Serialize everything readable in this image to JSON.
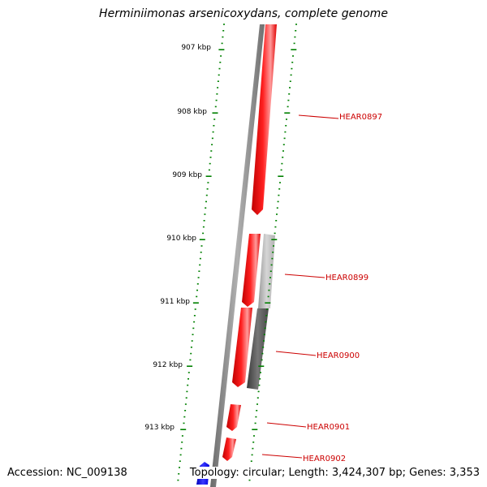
{
  "title": "Herminiimonas arsenicoxydans, complete genome",
  "accession": "Accession: NC_009138",
  "summary": "Topology: circular; Length: 3,424,307 bp; Genes: 3,353",
  "colors": {
    "backbone": "#808080",
    "gene_forward": "#ff0000",
    "gene_reverse_light": "#bbbbbb",
    "gene_reverse_dark": "#555555",
    "gene_blue": "#0000ff",
    "ticks": "#008000",
    "label_text": "#cc0000"
  },
  "scale_labels": [
    "907 kbp",
    "908 kbp",
    "909 kbp",
    "910 kbp",
    "911 kbp",
    "912 kbp",
    "913 kbp"
  ],
  "gene_labels": [
    "HEAR0897",
    "HEAR0899",
    "HEAR0900",
    "HEAR0901",
    "HEAR0902"
  ]
}
